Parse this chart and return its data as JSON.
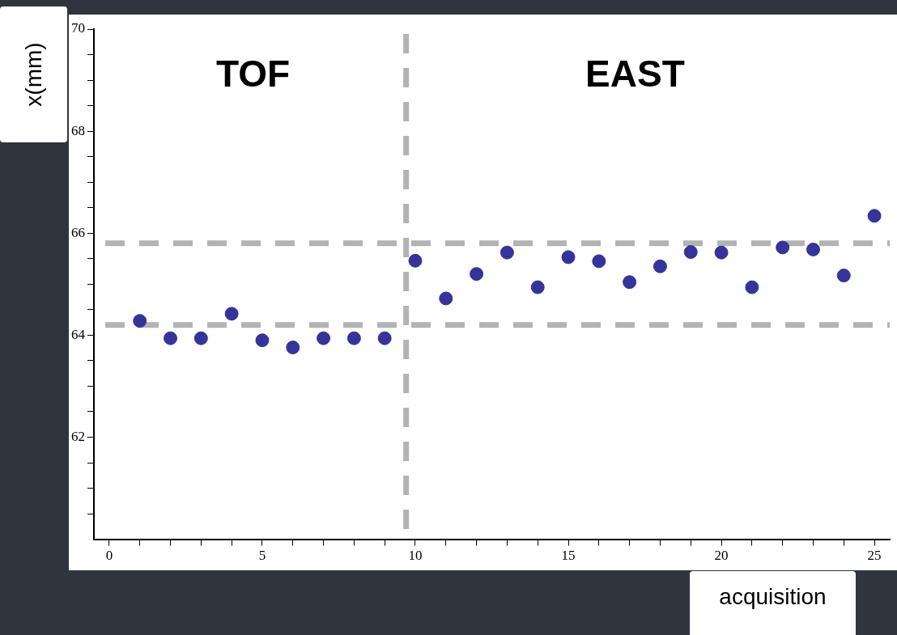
{
  "chart_data": {
    "type": "scatter",
    "xlabel": "acquisition",
    "ylabel": "x(mm)",
    "annotations": [
      "TOF",
      "EAST"
    ],
    "x": [
      1,
      2,
      3,
      4,
      5,
      6,
      7,
      8,
      9,
      10,
      11,
      12,
      13,
      14,
      15,
      16,
      17,
      18,
      19,
      20,
      21,
      22,
      23,
      24,
      25
    ],
    "series": [
      {
        "color": "#35349a",
        "values": [
          64.28,
          63.94,
          63.94,
          64.42,
          63.9,
          63.76,
          63.94,
          63.94,
          63.94,
          65.46,
          64.72,
          65.2,
          65.62,
          64.94,
          65.53,
          65.45,
          65.04,
          65.35,
          65.63,
          65.62,
          64.94,
          65.72,
          65.68,
          65.17,
          66.34
        ]
      }
    ],
    "xlim": [
      -0.5,
      25.5
    ],
    "xticks": [
      0,
      {
        "value": 1,
        "label": null
      },
      {
        "value": 2,
        "label": null
      },
      {
        "value": 3,
        "label": null
      },
      {
        "value": 4,
        "label": null
      },
      5,
      {
        "value": 6,
        "label": null
      },
      {
        "value": 7,
        "label": null
      },
      {
        "value": 8,
        "label": null
      },
      {
        "value": 9,
        "label": null
      },
      10,
      {
        "value": 11,
        "label": null
      },
      {
        "value": 12,
        "label": null
      },
      {
        "value": 13,
        "label": null
      },
      {
        "value": 14,
        "label": null
      },
      15,
      {
        "value": 16,
        "label": null
      },
      {
        "value": 17,
        "label": null
      },
      {
        "value": 18,
        "label": null
      },
      {
        "value": 19,
        "label": null
      },
      20,
      {
        "value": 21,
        "label": null
      },
      {
        "value": 22,
        "label": null
      },
      {
        "value": 23,
        "label": null
      },
      {
        "value": 24,
        "label": null
      },
      25
    ],
    "ylim": [
      60,
      70
    ],
    "yticks": [
      {
        "value": 60.5,
        "label": null
      },
      {
        "value": 61,
        "label": null
      },
      {
        "value": 61.5,
        "label": null
      },
      62,
      {
        "value": 62.5,
        "label": null
      },
      {
        "value": 63,
        "label": null
      },
      {
        "value": 63.5,
        "label": null
      },
      64,
      {
        "value": 64.5,
        "label": null
      },
      {
        "value": 65,
        "label": null
      },
      {
        "value": 65.5,
        "label": null
      },
      66,
      {
        "value": 66.5,
        "label": null
      },
      {
        "value": 67,
        "label": null
      },
      {
        "value": 67.5,
        "label": null
      },
      68,
      {
        "value": 68.5,
        "label": null
      },
      {
        "value": 69,
        "label": null
      },
      {
        "value": 69.5,
        "label": null
      },
      70
    ],
    "ref_lines": [
      {
        "axis": "y",
        "value": 65.8,
        "color": "#b3b3b3",
        "line_style": "dashed"
      },
      {
        "axis": "y",
        "value": 64.2,
        "color": "#b3b3b3",
        "line_style": "dashed"
      },
      {
        "axis": "x",
        "value": 9.7,
        "color": "#b3b3b3",
        "line_style": "dashed"
      }
    ],
    "grid": false,
    "legend": false,
    "marker": "circle"
  }
}
